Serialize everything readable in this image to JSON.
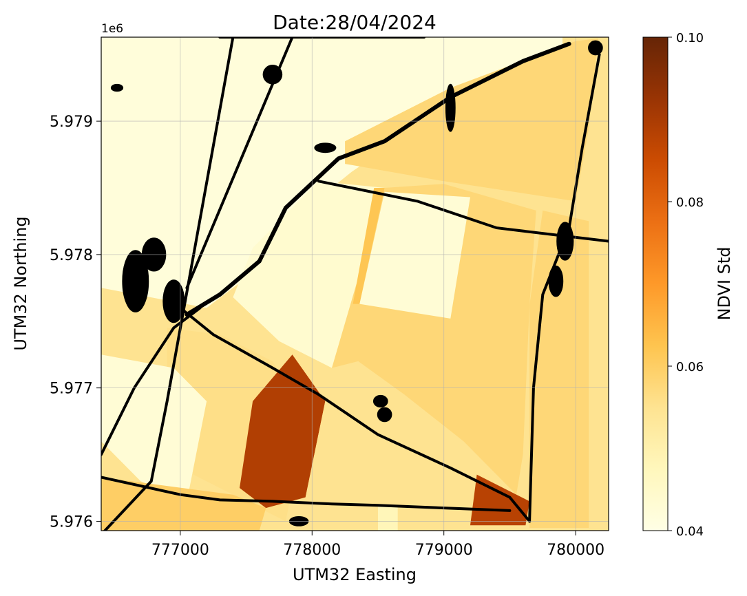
{
  "chart_data": {
    "type": "heatmap",
    "title": "Date:28/04/2024",
    "xlabel": "UTM32 Easting",
    "ylabel": "UTM32 Northing",
    "y_offset_label": "1e6",
    "xlim": [
      776400,
      780250
    ],
    "ylim": [
      5.97593,
      5.97963
    ],
    "x_ticks": [
      777000,
      778000,
      779000,
      780000
    ],
    "x_tick_labels": [
      "777000",
      "778000",
      "779000",
      "780000"
    ],
    "y_ticks": [
      5.976,
      5.977,
      5.978,
      5.979
    ],
    "y_tick_labels": [
      "5.976",
      "5.977",
      "5.978",
      "5.979"
    ],
    "grid": true,
    "colormap": "YlOrBr",
    "colorbar": {
      "label": "NDVI Std",
      "range": [
        0.04,
        0.1
      ],
      "ticks": [
        0.04,
        0.06,
        0.08,
        0.1
      ],
      "tick_labels": [
        "0.04",
        "0.06",
        "0.08",
        "0.10"
      ],
      "colors": [
        "#ffffe5",
        "#fff7bc",
        "#fee391",
        "#fec44f",
        "#fe9929",
        "#ec7014",
        "#cc4c02",
        "#993404",
        "#662506"
      ]
    },
    "masked_color": "#000000",
    "fields": [
      {
        "id": "north-strip",
        "ndvi_std": 0.042,
        "poly": [
          [
            776400,
            5.97963
          ],
          [
            778300,
            5.97963
          ],
          [
            778950,
            5.97963
          ],
          [
            779900,
            5.97963
          ],
          [
            779900,
            5.97953
          ],
          [
            778980,
            5.97908
          ],
          [
            778300,
            5.97862
          ],
          [
            777900,
            5.9783
          ],
          [
            777600,
            5.9779
          ],
          [
            777200,
            5.9776
          ],
          [
            776400,
            5.97775
          ]
        ]
      },
      {
        "id": "north-east-field",
        "ndvi_std": 0.058,
        "poly": [
          [
            778250,
            5.97885
          ],
          [
            779050,
            5.97925
          ],
          [
            780000,
            5.9796
          ],
          [
            780170,
            5.97962
          ],
          [
            780100,
            5.97895
          ],
          [
            780000,
            5.9784
          ],
          [
            779000,
            5.97855
          ],
          [
            778250,
            5.97868
          ]
        ]
      },
      {
        "id": "central-light",
        "ndvi_std": 0.044,
        "poly": [
          [
            777550,
            5.97805
          ],
          [
            778050,
            5.97855
          ],
          [
            778550,
            5.9785
          ],
          [
            778350,
            5.9774
          ],
          [
            778150,
            5.97715
          ],
          [
            777750,
            5.97735
          ],
          [
            777400,
            5.97768
          ]
        ]
      },
      {
        "id": "central-east-field",
        "ndvi_std": 0.058,
        "poly": [
          [
            778550,
            5.9785
          ],
          [
            779000,
            5.97853
          ],
          [
            779700,
            5.97833
          ],
          [
            779650,
            5.97762
          ],
          [
            779600,
            5.9765
          ],
          [
            779550,
            5.9762
          ],
          [
            779150,
            5.9766
          ],
          [
            778700,
            5.97695
          ],
          [
            778350,
            5.9772
          ],
          [
            778150,
            5.97715
          ]
        ]
      },
      {
        "id": "inner-light",
        "ndvi_std": 0.043,
        "poly": [
          [
            778550,
            5.97847
          ],
          [
            779200,
            5.97843
          ],
          [
            779050,
            5.97752
          ],
          [
            778360,
            5.97763
          ]
        ]
      },
      {
        "id": "strip-orange",
        "ndvi_std": 0.062,
        "poly": [
          [
            778470,
            5.9785
          ],
          [
            778550,
            5.9785
          ],
          [
            778360,
            5.97763
          ],
          [
            778310,
            5.97763
          ]
        ]
      },
      {
        "id": "east-edge-field",
        "ndvi_std": 0.058,
        "poly": [
          [
            779750,
            5.97833
          ],
          [
            780100,
            5.97825
          ],
          [
            780100,
            5.97595
          ],
          [
            779650,
            5.97595
          ],
          [
            779650,
            5.97762
          ]
        ]
      },
      {
        "id": "west-middle-field",
        "ndvi_std": 0.056,
        "poly": [
          [
            776900,
            5.97745
          ],
          [
            777300,
            5.9774
          ],
          [
            777700,
            5.9772
          ],
          [
            777950,
            5.97675
          ],
          [
            777800,
            5.976
          ],
          [
            777400,
            5.9762
          ],
          [
            777100,
            5.97635
          ],
          [
            776900,
            5.97685
          ]
        ]
      },
      {
        "id": "west-light-field",
        "ndvi_std": 0.043,
        "poly": [
          [
            776400,
            5.97725
          ],
          [
            776950,
            5.97715
          ],
          [
            777200,
            5.9769
          ],
          [
            777050,
            5.97615
          ],
          [
            776700,
            5.9763
          ],
          [
            776400,
            5.9766
          ]
        ]
      },
      {
        "id": "brown-strip",
        "ndvi_std": 0.089,
        "poly": [
          [
            777850,
            5.97725
          ],
          [
            778100,
            5.9769
          ],
          [
            777950,
            5.97618
          ],
          [
            777650,
            5.9761
          ],
          [
            777450,
            5.97625
          ],
          [
            777550,
            5.9769
          ]
        ]
      },
      {
        "id": "south-middle-field",
        "ndvi_std": 0.055,
        "poly": [
          [
            778100,
            5.9769
          ],
          [
            778450,
            5.9766
          ],
          [
            779000,
            5.9764
          ],
          [
            779400,
            5.97623
          ],
          [
            779300,
            5.97605
          ],
          [
            778700,
            5.97605
          ],
          [
            778100,
            5.97615
          ],
          [
            777950,
            5.97618
          ]
        ]
      },
      {
        "id": "south-east-brown",
        "ndvi_std": 0.088,
        "poly": [
          [
            779250,
            5.97635
          ],
          [
            779650,
            5.97615
          ],
          [
            779620,
            5.97597
          ],
          [
            779200,
            5.97597
          ]
        ]
      },
      {
        "id": "south-west-corner",
        "ndvi_std": 0.06,
        "poly": [
          [
            776400,
            5.97633
          ],
          [
            777400,
            5.9762
          ],
          [
            777650,
            5.9761
          ],
          [
            777600,
            5.97593
          ],
          [
            776400,
            5.97593
          ]
        ]
      },
      {
        "id": "south-light-patch",
        "ndvi_std": 0.048,
        "poly": [
          [
            778500,
            5.97612
          ],
          [
            778650,
            5.97612
          ],
          [
            778650,
            5.97593
          ],
          [
            778500,
            5.97593
          ]
        ]
      }
    ]
  }
}
